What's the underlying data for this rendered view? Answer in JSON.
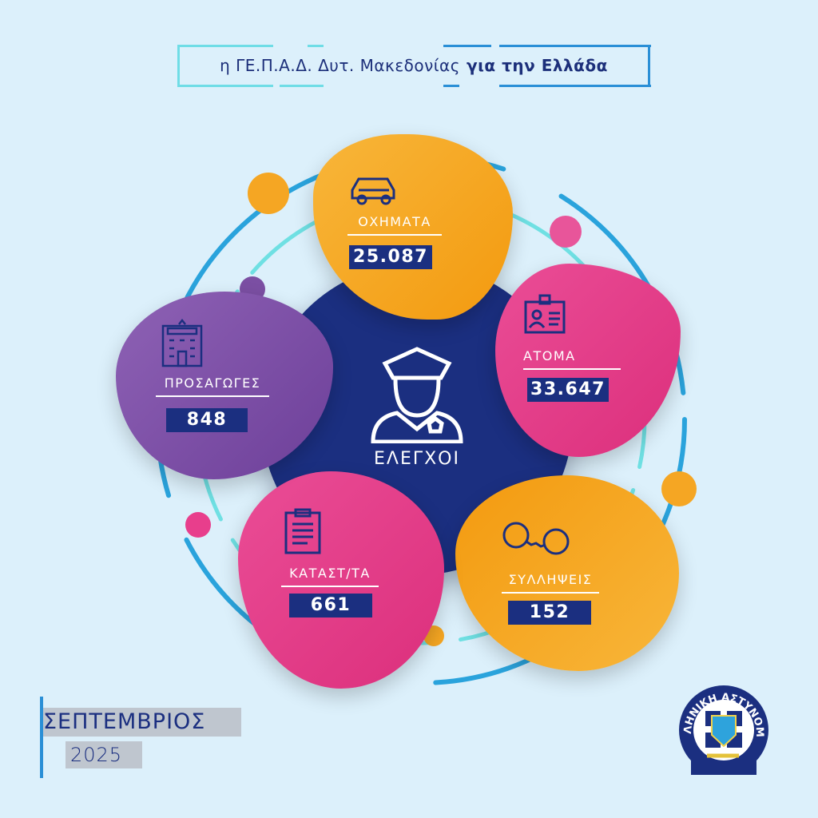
{
  "header": {
    "title_regular": "η ΓΕ.Π.Α.Δ. Δυτ. Μακεδονίας",
    "title_bold": "για την Ελλάδα"
  },
  "center": {
    "label": "ΕΛΕΓΧΟΙ",
    "icon": "police-officer-icon"
  },
  "stats": [
    {
      "label": "ΟΧΗΜΑΤΑ",
      "value": "25.087",
      "icon": "car-icon",
      "color": "#f5a623"
    },
    {
      "label": "ΑΤΟΜΑ",
      "value": "33.647",
      "icon": "id-card-icon",
      "color": "#e83e8c"
    },
    {
      "label": "ΣΥΛΛΗΨΕΙΣ",
      "value": "152",
      "icon": "handcuffs-icon",
      "color": "#f5a623"
    },
    {
      "label": "ΚΑΤΑΣΤ/ΤΑ",
      "value": "661",
      "icon": "clipboard-icon",
      "color": "#e83e8c"
    },
    {
      "label": "ΠΡΟΣΑΓΩΓΕΣ",
      "value": "848",
      "icon": "police-station-icon",
      "color": "#7b4fa3"
    }
  ],
  "footer": {
    "month": "ΣΕΠΤΕΜΒΡΙΟΣ",
    "year": "2025"
  },
  "logo": {
    "text": "ΕΛΛΗΝΙΚΗ ΑΣΤΥΝΟΜΙΑ"
  },
  "colors": {
    "navy": "#1b2f80",
    "orange": "#f5a623",
    "pink": "#e83e8c",
    "purple": "#7b4fa3",
    "background": "#dcf0fb"
  }
}
